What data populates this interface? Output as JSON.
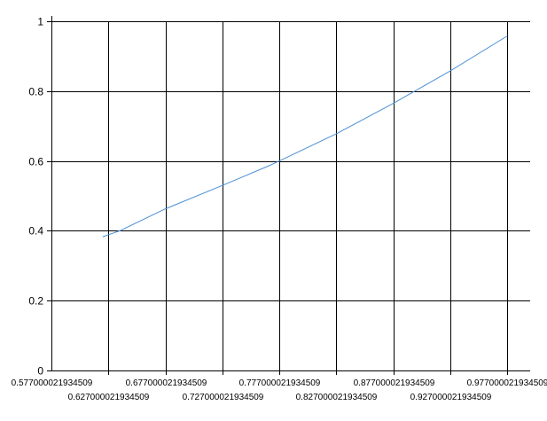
{
  "chart_data": {
    "type": "line",
    "title": "",
    "xlabel": "",
    "ylabel": "",
    "xlim": [
      0.577000021934509,
      0.997000021934509
    ],
    "ylim": [
      0,
      1
    ],
    "grid": true,
    "x_tick_labels": [
      "0.577000021934509",
      "0.627000021934509",
      "0.677000021934509",
      "0.727000021934509",
      "0.777000021934509",
      "0.827000021934509",
      "0.877000021934509",
      "0.927000021934509",
      "0.977000021934509"
    ],
    "y_tick_labels": [
      "0",
      "0.2",
      "0.4",
      "0.6",
      "0.8",
      "1"
    ],
    "series": [
      {
        "color": "#4a8fd6",
        "x": [
          0.622,
          0.637,
          0.677,
          0.727,
          0.767,
          0.777,
          0.827,
          0.877,
          0.927,
          0.977
        ],
        "y": [
          0.383,
          0.4,
          0.463,
          0.53,
          0.585,
          0.6,
          0.678,
          0.765,
          0.858,
          0.958
        ]
      }
    ]
  }
}
